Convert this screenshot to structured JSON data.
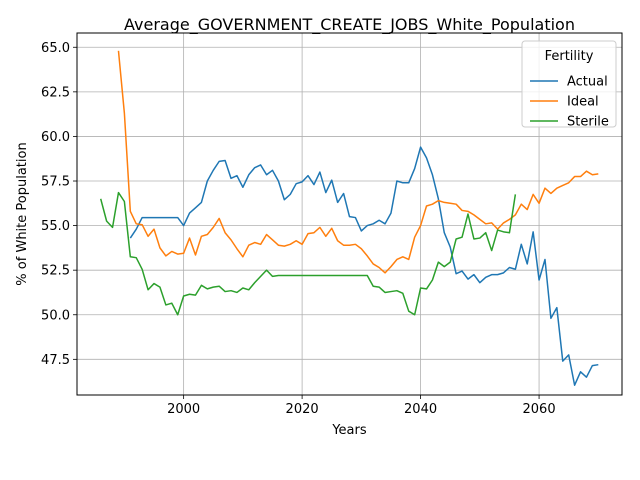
{
  "chart_data": {
    "type": "line",
    "title": "Average_GOVERNMENT_CREATE_JOBS_White_Population",
    "xlabel": "Years",
    "ylabel": "% of White Population",
    "xlim": [
      1982,
      2074
    ],
    "ylim": [
      45.5,
      65.8
    ],
    "xticks": [
      2000,
      2020,
      2040,
      2060
    ],
    "xtick_labels": [
      "2000",
      "2020",
      "2040",
      "2060"
    ],
    "yticks": [
      47.5,
      50.0,
      52.5,
      55.0,
      57.5,
      60.0,
      62.5,
      65.0
    ],
    "ytick_labels": [
      "47.5",
      "50.0",
      "52.5",
      "55.0",
      "57.5",
      "60.0",
      "62.5",
      "65.0"
    ],
    "grid": true,
    "legend": {
      "title": "Fertility",
      "position": "top-right"
    },
    "series": [
      {
        "name": "Actual",
        "color": "#1f77b4",
        "x": [
          1991,
          1992,
          1993,
          1994,
          1995,
          1996,
          1997,
          1998,
          1999,
          2000,
          2001,
          2002,
          2003,
          2004,
          2005,
          2006,
          2007,
          2008,
          2009,
          2010,
          2011,
          2012,
          2013,
          2014,
          2015,
          2016,
          2017,
          2018,
          2019,
          2020,
          2021,
          2022,
          2023,
          2024,
          2025,
          2026,
          2027,
          2028,
          2029,
          2030,
          2031,
          2032,
          2033,
          2034,
          2035,
          2036,
          2037,
          2038,
          2039,
          2040,
          2041,
          2042,
          2043,
          2044,
          2045,
          2046,
          2047,
          2048,
          2049,
          2050,
          2051,
          2052,
          2053,
          2054,
          2055,
          2056,
          2057,
          2058,
          2059,
          2060,
          2061,
          2062,
          2063,
          2064,
          2065,
          2066,
          2067,
          2068,
          2069,
          2070
        ],
        "y": [
          54.3,
          54.8,
          55.45,
          55.45,
          55.45,
          55.45,
          55.45,
          55.45,
          55.45,
          55.0,
          55.7,
          56.0,
          56.3,
          57.5,
          58.1,
          58.6,
          58.65,
          57.65,
          57.8,
          57.15,
          57.85,
          58.25,
          58.4,
          57.85,
          58.1,
          57.5,
          56.45,
          56.75,
          57.35,
          57.45,
          57.8,
          57.3,
          58.0,
          56.85,
          57.55,
          56.3,
          56.8,
          55.5,
          55.45,
          54.7,
          55.0,
          55.1,
          55.3,
          55.1,
          55.7,
          57.5,
          57.4,
          57.4,
          58.2,
          59.4,
          58.8,
          57.85,
          56.5,
          54.6,
          53.8,
          52.3,
          52.45,
          52.0,
          52.25,
          51.8,
          52.1,
          52.25,
          52.25,
          52.35,
          52.65,
          52.55,
          53.95,
          52.85,
          54.65,
          51.95,
          53.1,
          49.8,
          50.4,
          47.4,
          47.75,
          46.05,
          46.8,
          46.5,
          47.15,
          47.2
        ]
      },
      {
        "name": "Ideal",
        "color": "#ff7f0e",
        "x": [
          1989,
          1990,
          1991,
          1992,
          1993,
          1994,
          1995,
          1996,
          1997,
          1998,
          1999,
          2000,
          2001,
          2002,
          2003,
          2004,
          2005,
          2006,
          2007,
          2008,
          2009,
          2010,
          2011,
          2012,
          2013,
          2014,
          2015,
          2016,
          2017,
          2018,
          2019,
          2020,
          2021,
          2022,
          2023,
          2024,
          2025,
          2026,
          2027,
          2028,
          2029,
          2030,
          2031,
          2032,
          2033,
          2034,
          2035,
          2036,
          2037,
          2038,
          2039,
          2040,
          2041,
          2042,
          2043,
          2044,
          2045,
          2046,
          2047,
          2048,
          2049,
          2050,
          2051,
          2052,
          2053,
          2054,
          2055,
          2056,
          2057,
          2058,
          2059,
          2060,
          2061,
          2062,
          2063,
          2064,
          2065,
          2066,
          2067,
          2068,
          2069,
          2070
        ],
        "y": [
          64.8,
          61.3,
          55.8,
          55.1,
          55.05,
          54.4,
          54.8,
          53.75,
          53.3,
          53.55,
          53.4,
          53.45,
          54.3,
          53.35,
          54.4,
          54.5,
          54.9,
          55.4,
          54.6,
          54.2,
          53.7,
          53.25,
          53.9,
          54.05,
          53.95,
          54.5,
          54.2,
          53.9,
          53.85,
          53.95,
          54.15,
          53.95,
          54.55,
          54.6,
          54.9,
          54.4,
          54.85,
          54.15,
          53.9,
          53.9,
          53.95,
          53.7,
          53.3,
          52.85,
          52.65,
          52.35,
          52.7,
          53.1,
          53.25,
          53.1,
          54.35,
          55.0,
          56.1,
          56.2,
          56.4,
          56.3,
          56.25,
          56.2,
          55.85,
          55.8,
          55.6,
          55.35,
          55.1,
          55.15,
          54.8,
          55.15,
          55.35,
          55.6,
          56.2,
          55.9,
          56.75,
          56.25,
          57.1,
          56.8,
          57.1,
          57.25,
          57.4,
          57.75,
          57.75,
          58.05,
          57.85,
          57.9
        ]
      },
      {
        "name": "Sterile",
        "color": "#2ca02c",
        "x": [
          1986,
          1987,
          1988,
          1989,
          1990,
          1991,
          1992,
          1993,
          1994,
          1995,
          1996,
          1997,
          1998,
          1999,
          2000,
          2001,
          2002,
          2003,
          2004,
          2005,
          2006,
          2007,
          2008,
          2009,
          2010,
          2011,
          2012,
          2013,
          2014,
          2015,
          2016,
          2017,
          2018,
          2019,
          2020,
          2021,
          2022,
          2023,
          2024,
          2025,
          2026,
          2027,
          2028,
          2029,
          2030,
          2031,
          2032,
          2033,
          2034,
          2035,
          2036,
          2037,
          2038,
          2039,
          2040,
          2041,
          2042,
          2043,
          2044,
          2045,
          2046,
          2047,
          2048,
          2049,
          2050,
          2051,
          2052,
          2053,
          2054,
          2055,
          2056
        ],
        "y": [
          56.5,
          55.25,
          54.9,
          56.85,
          56.35,
          53.25,
          53.2,
          52.55,
          51.4,
          51.75,
          51.55,
          50.55,
          50.65,
          50.0,
          51.05,
          51.15,
          51.1,
          51.65,
          51.45,
          51.55,
          51.6,
          51.3,
          51.35,
          51.25,
          51.5,
          51.4,
          51.8,
          52.15,
          52.5,
          52.15,
          52.2,
          52.2,
          52.2,
          52.2,
          52.2,
          52.2,
          52.2,
          52.2,
          52.2,
          52.2,
          52.2,
          52.2,
          52.2,
          52.2,
          52.2,
          52.2,
          51.6,
          51.55,
          51.25,
          51.3,
          51.35,
          51.2,
          50.2,
          50.0,
          51.5,
          51.45,
          51.95,
          52.95,
          52.7,
          52.95,
          54.25,
          54.35,
          55.65,
          54.25,
          54.3,
          54.6,
          53.6,
          54.75,
          54.65,
          54.6,
          56.75
        ]
      }
    ]
  }
}
